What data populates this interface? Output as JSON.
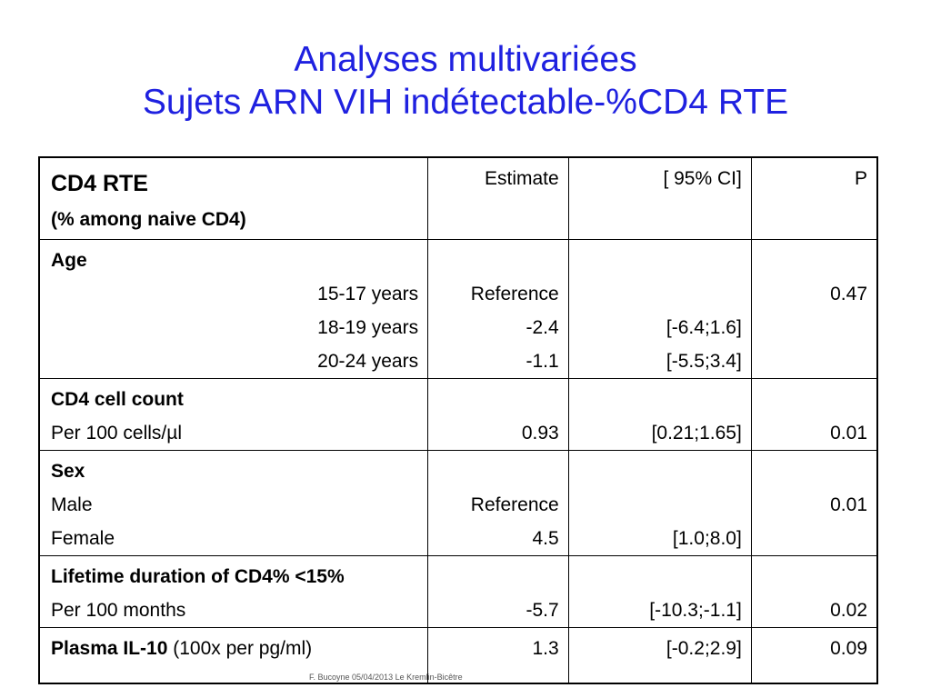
{
  "title": {
    "line1": "Analyses multivariées",
    "line2": "Sujets ARN VIH indétectable-%CD4 RTE"
  },
  "colors": {
    "title": "#1f21e0"
  },
  "header": {
    "label": "CD4 RTE",
    "sublabel": "(% among naive CD4)",
    "estimate": "Estimate",
    "ci": "[ 95% CI]",
    "p": "P"
  },
  "age": {
    "label": "Age",
    "levels": [
      "15-17 years",
      "18-19 years",
      "20-24 years"
    ],
    "estimates": [
      "Reference",
      "-2.4",
      "-1.1"
    ],
    "ci": [
      "",
      "[-6.4;1.6]",
      "[-5.5;3.4]"
    ],
    "p": "0.47"
  },
  "cd4": {
    "label": "CD4 cell count",
    "unit": "Per 100 cells/µl",
    "estimate": "0.93",
    "ci": "[0.21;1.65]",
    "p": "0.01"
  },
  "sex": {
    "label": "Sex",
    "levels": [
      "Male",
      "Female"
    ],
    "estimates": [
      "Reference",
      "4.5"
    ],
    "ci": [
      "",
      "[1.0;8.0]"
    ],
    "p": "0.01"
  },
  "lifetime": {
    "label": "Lifetime duration of CD4% <15%",
    "unit": "Per 100 months",
    "estimate": "-5.7",
    "ci": "[-10.3;-1.1]",
    "p": "0.02"
  },
  "il10": {
    "label": "Plasma IL-10",
    "unit": " (100x per pg/ml)",
    "estimate": "1.3",
    "ci": "[-0.2;2.9]",
    "p": "0.09"
  },
  "footer": "F. Bucoyne  05/04/2013  Le Kremlin-Bicêtre"
}
